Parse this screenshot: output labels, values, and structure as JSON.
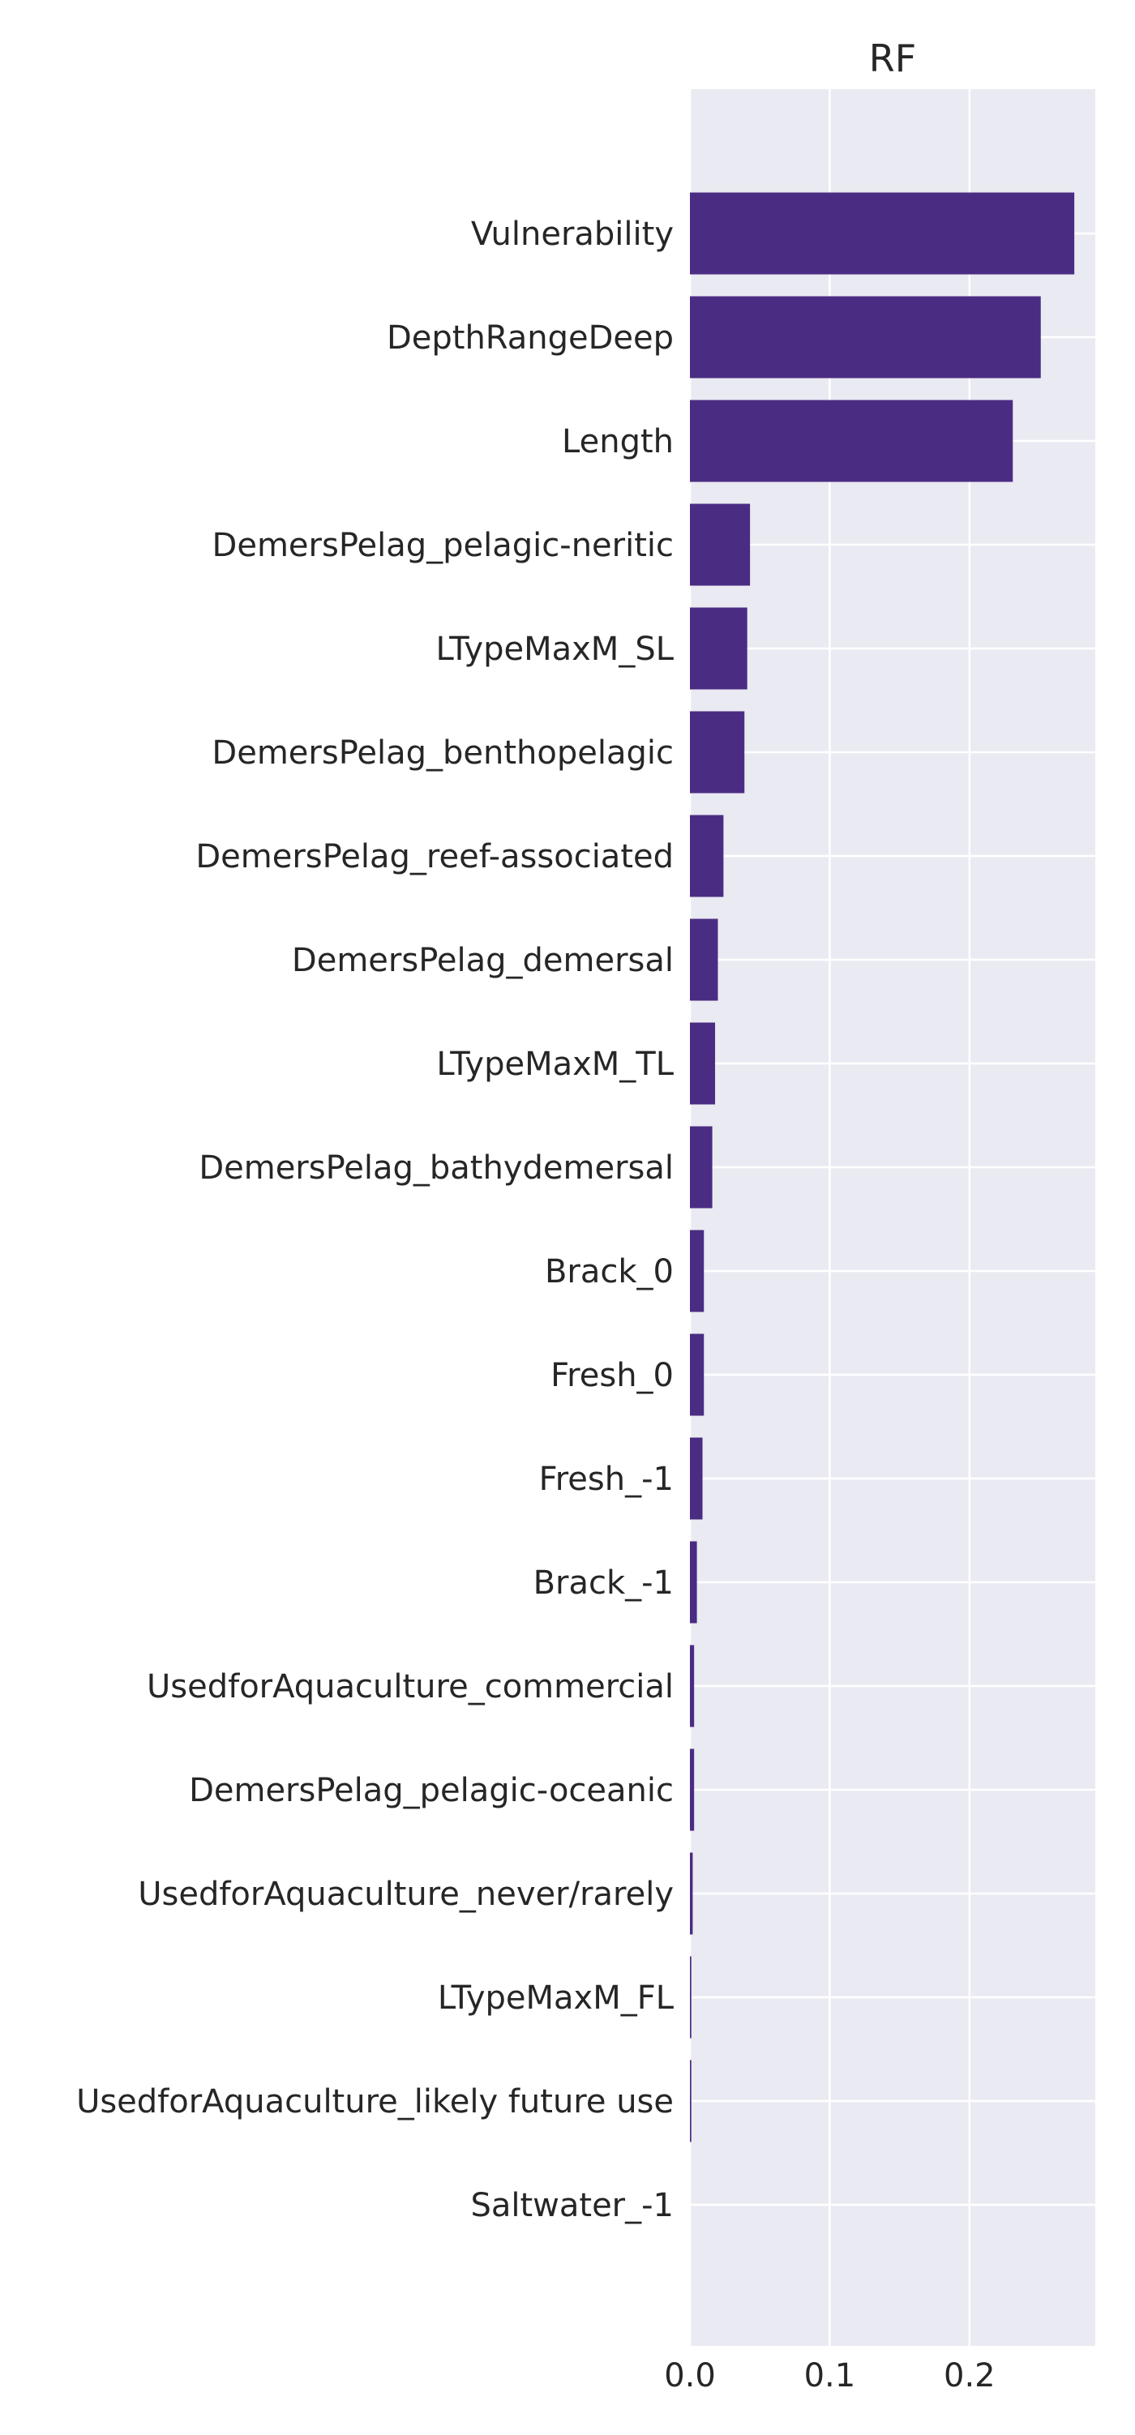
{
  "chart_data": {
    "type": "bar",
    "orientation": "horizontal",
    "title": "RF",
    "xlabel": "",
    "ylabel": "",
    "xlim": [
      0,
      0.29
    ],
    "xticks": [
      0.0,
      0.1,
      0.2
    ],
    "xtick_labels": [
      "0.0",
      "0.1",
      "0.2"
    ],
    "grid": true,
    "legend": "none",
    "colors": {
      "bar": "#4b2c83",
      "plot_background": "#eaeaf2",
      "grid": "#ffffff",
      "text": "#262626"
    },
    "categories": [
      "Vulnerability",
      "DepthRangeDeep",
      "Length",
      "DemersPelag_pelagic-neritic",
      "LTypeMaxM_SL",
      "DemersPelag_benthopelagic",
      "DemersPelag_reef-associated",
      "DemersPelag_demersal",
      "LTypeMaxM_TL",
      "DemersPelag_bathydemersal",
      "Brack_0",
      "Fresh_0",
      "Fresh_-1",
      "Brack_-1",
      "UsedforAquaculture_commercial",
      "DemersPelag_pelagic-oceanic",
      "UsedforAquaculture_never/rarely",
      "LTypeMaxM_FL",
      "UsedforAquaculture_likely future use",
      "Saltwater_-1"
    ],
    "values": [
      0.275,
      0.251,
      0.231,
      0.043,
      0.041,
      0.039,
      0.024,
      0.02,
      0.018,
      0.016,
      0.01,
      0.01,
      0.009,
      0.005,
      0.003,
      0.003,
      0.002,
      0.001,
      0.001,
      0.0
    ]
  }
}
